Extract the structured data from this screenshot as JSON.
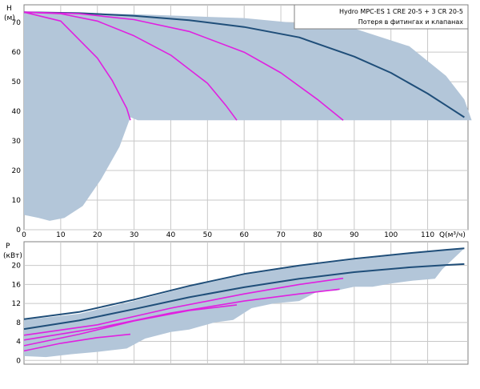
{
  "chart_data": [
    {
      "type": "line",
      "id": "head-chart",
      "ylabel": "H",
      "yunit": "(м)",
      "xlabel": "Q(м³/ч)",
      "xlim": [
        0,
        121
      ],
      "ylim": [
        0,
        76
      ],
      "xticks": [
        0,
        10,
        20,
        30,
        40,
        50,
        60,
        70,
        80,
        90,
        100,
        110
      ],
      "yticks": [
        0,
        10,
        20,
        30,
        40,
        50,
        60,
        70
      ],
      "grid": true,
      "legend": {
        "placement": "top-right",
        "lines": [
          "Hydro MPC-ES 1 CRE 20-5  +  3 CR 20-5",
          "Потеря в фитингах и клапанах"
        ]
      },
      "operating_area": [
        [
          0,
          73.5
        ],
        [
          30,
          72.8
        ],
        [
          60,
          71.5
        ],
        [
          90,
          68
        ],
        [
          105,
          62
        ],
        [
          115,
          52
        ],
        [
          120,
          44
        ],
        [
          122,
          37
        ],
        [
          31,
          37
        ],
        [
          29,
          38
        ],
        [
          26,
          28
        ],
        [
          21,
          17
        ],
        [
          16,
          8
        ],
        [
          11,
          4
        ],
        [
          7,
          3
        ],
        [
          4,
          4
        ],
        [
          0,
          5
        ]
      ],
      "colors": {
        "max_curve": "#1f4e79",
        "pump_curves": "#e020e0",
        "area": "#b3c6d9"
      },
      "series": [
        {
          "name": "",
          "role": "max",
          "x": [
            0,
            15,
            30,
            45,
            60,
            75,
            90,
            100,
            110,
            115,
            120
          ],
          "y": [
            73.5,
            73.2,
            72.3,
            70.8,
            68.5,
            65,
            58.5,
            53,
            46,
            42,
            38
          ]
        },
        {
          "name": "",
          "role": "pump",
          "x": [
            0,
            10,
            20,
            24,
            28,
            29
          ],
          "y": [
            73.5,
            70.5,
            58,
            50.5,
            41,
            37
          ]
        },
        {
          "name": "",
          "role": "pump",
          "x": [
            0,
            10,
            20,
            30,
            40,
            50,
            55,
            58
          ],
          "y": [
            73.5,
            73,
            70.5,
            65.5,
            59,
            49.5,
            42,
            37
          ]
        },
        {
          "name": "",
          "role": "pump",
          "x": [
            0,
            15,
            30,
            45,
            60,
            70,
            80,
            87
          ],
          "y": [
            73.5,
            73,
            71,
            67,
            60,
            53,
            44,
            37
          ]
        }
      ]
    },
    {
      "type": "line",
      "id": "power-chart",
      "ylabel": "P",
      "yunit": "(кВт)",
      "xlim": [
        0,
        121
      ],
      "ylim": [
        -0.8,
        25
      ],
      "yticks": [
        0,
        4,
        8,
        12,
        16,
        20
      ],
      "grid": true,
      "operating_area": [
        [
          0,
          8.5
        ],
        [
          15,
          9.8
        ],
        [
          30,
          12.5
        ],
        [
          45,
          15.5
        ],
        [
          60,
          18
        ],
        [
          75,
          19.8
        ],
        [
          90,
          21.2
        ],
        [
          105,
          22.5
        ],
        [
          115,
          23.2
        ],
        [
          120,
          23.6
        ],
        [
          114,
          19.2
        ],
        [
          112,
          17.2
        ],
        [
          106,
          16.8
        ],
        [
          100,
          16.2
        ],
        [
          95,
          15.5
        ],
        [
          90,
          15.5
        ],
        [
          85,
          14.7
        ],
        [
          80,
          14.5
        ],
        [
          75,
          12.5
        ],
        [
          68,
          12
        ],
        [
          62,
          11
        ],
        [
          57,
          8.5
        ],
        [
          52,
          8
        ],
        [
          45,
          6.5
        ],
        [
          40,
          6
        ],
        [
          33,
          4.6
        ],
        [
          28,
          2.5
        ],
        [
          20,
          1.8
        ],
        [
          13,
          1.3
        ],
        [
          6,
          0.7
        ],
        [
          0,
          0.9
        ]
      ],
      "colors": {
        "max_curve": "#1f4e79",
        "pump_curves": "#e020e0",
        "area": "#b3c6d9"
      },
      "series": [
        {
          "name": "",
          "role": "max",
          "x": [
            0,
            15,
            30,
            45,
            60,
            75,
            90,
            105,
            115,
            120
          ],
          "y": [
            8.7,
            10.2,
            12.8,
            15.7,
            18.2,
            20,
            21.4,
            22.6,
            23.3,
            23.6
          ]
        },
        {
          "name": "",
          "role": "max",
          "x": [
            0,
            15,
            30,
            45,
            60,
            75,
            90,
            105,
            115,
            120
          ],
          "y": [
            6.6,
            8.4,
            10.8,
            13.3,
            15.4,
            17.2,
            18.6,
            19.6,
            20.1,
            20.3
          ]
        },
        {
          "name": "",
          "role": "pump",
          "x": [
            0,
            20,
            40,
            60,
            75,
            87
          ],
          "y": [
            5.3,
            7.5,
            11,
            14,
            16,
            17.3
          ]
        },
        {
          "name": "",
          "role": "pump",
          "x": [
            0,
            20,
            40,
            60,
            75,
            86
          ],
          "y": [
            4.3,
            6.8,
            10,
            12.5,
            14,
            15
          ]
        },
        {
          "name": "",
          "role": "pump",
          "x": [
            0,
            15,
            30,
            45,
            58
          ],
          "y": [
            3.1,
            5.5,
            8.3,
            10.5,
            11.7
          ]
        },
        {
          "name": "",
          "role": "pump",
          "x": [
            0,
            10,
            20,
            29
          ],
          "y": [
            2,
            3.6,
            4.8,
            5.5
          ]
        }
      ]
    }
  ]
}
